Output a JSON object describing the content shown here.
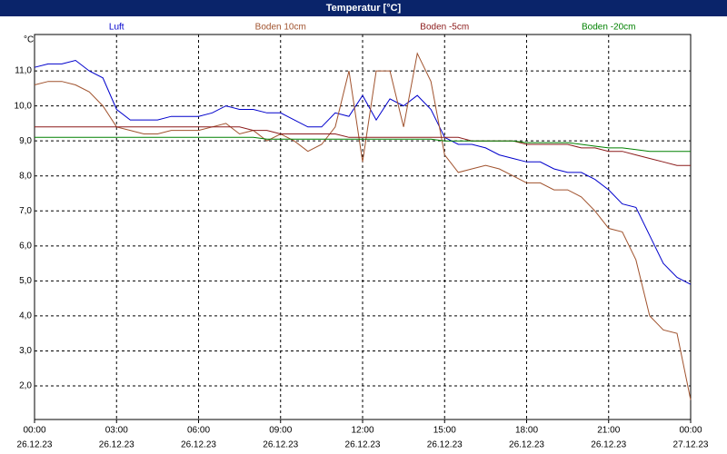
{
  "chart_data": {
    "type": "line",
    "title": "Temperatur [°C]",
    "y_unit_label": "°C",
    "x": [
      0,
      0.5,
      1,
      1.5,
      2,
      2.5,
      3,
      3.5,
      4,
      4.5,
      5,
      5.5,
      6,
      6.5,
      7,
      7.5,
      8,
      8.5,
      9,
      9.5,
      10,
      10.5,
      11,
      11.5,
      12,
      12.5,
      13,
      13.5,
      14,
      14.5,
      15,
      15.5,
      16,
      16.5,
      17,
      17.5,
      18,
      18.5,
      19,
      19.5,
      20,
      20.5,
      21,
      21.5,
      22,
      22.5,
      23,
      23.5,
      24
    ],
    "series": [
      {
        "name": "Luft",
        "color": "#0000cc",
        "values": [
          11.1,
          11.2,
          11.2,
          11.3,
          11.0,
          10.8,
          9.9,
          9.6,
          9.6,
          9.6,
          9.7,
          9.7,
          9.7,
          9.8,
          10.0,
          9.9,
          9.9,
          9.8,
          9.8,
          9.6,
          9.4,
          9.4,
          9.8,
          9.7,
          10.3,
          9.6,
          10.2,
          10.0,
          10.3,
          9.9,
          9.1,
          8.9,
          8.9,
          8.8,
          8.6,
          8.5,
          8.4,
          8.4,
          8.2,
          8.1,
          8.1,
          7.9,
          7.6,
          7.2,
          7.1,
          6.3,
          5.5,
          5.1,
          4.9
        ]
      },
      {
        "name": "Boden 10cm",
        "color": "#a0522d",
        "values": [
          10.6,
          10.7,
          10.7,
          10.6,
          10.4,
          10.0,
          9.4,
          9.3,
          9.2,
          9.2,
          9.3,
          9.3,
          9.3,
          9.4,
          9.5,
          9.2,
          9.3,
          9.0,
          9.2,
          9.0,
          8.7,
          8.9,
          9.4,
          11.0,
          8.4,
          11.0,
          11.0,
          9.4,
          11.5,
          10.7,
          8.6,
          8.1,
          8.2,
          8.3,
          8.2,
          8.0,
          7.8,
          7.8,
          7.6,
          7.6,
          7.4,
          7.0,
          6.5,
          6.4,
          5.6,
          4.0,
          3.6,
          3.5,
          1.6
        ]
      },
      {
        "name": "Boden -5cm",
        "color": "#8b1a1a",
        "values": [
          9.4,
          9.4,
          9.4,
          9.4,
          9.4,
          9.4,
          9.4,
          9.4,
          9.4,
          9.4,
          9.4,
          9.4,
          9.4,
          9.4,
          9.4,
          9.4,
          9.3,
          9.3,
          9.2,
          9.2,
          9.2,
          9.2,
          9.2,
          9.1,
          9.1,
          9.1,
          9.1,
          9.1,
          9.1,
          9.1,
          9.1,
          9.1,
          9.0,
          9.0,
          9.0,
          9.0,
          8.9,
          8.9,
          8.9,
          8.9,
          8.8,
          8.8,
          8.7,
          8.7,
          8.6,
          8.5,
          8.4,
          8.3,
          8.3
        ]
      },
      {
        "name": "Boden -20cm",
        "color": "#008000",
        "values": [
          9.1,
          9.1,
          9.1,
          9.1,
          9.1,
          9.1,
          9.1,
          9.1,
          9.1,
          9.1,
          9.1,
          9.1,
          9.1,
          9.1,
          9.1,
          9.1,
          9.1,
          9.05,
          9.05,
          9.05,
          9.05,
          9.05,
          9.05,
          9.05,
          9.05,
          9.05,
          9.05,
          9.05,
          9.05,
          9.05,
          9.0,
          9.0,
          9.0,
          9.0,
          9.0,
          9.0,
          8.95,
          8.95,
          8.95,
          8.95,
          8.9,
          8.85,
          8.8,
          8.8,
          8.75,
          8.7,
          8.7,
          8.7,
          8.7
        ]
      }
    ],
    "xlim": [
      0,
      24
    ],
    "xticks": [
      {
        "value": 0,
        "label": "00:00"
      },
      {
        "value": 3,
        "label": "03:00"
      },
      {
        "value": 6,
        "label": "06:00"
      },
      {
        "value": 9,
        "label": "09:00"
      },
      {
        "value": 12,
        "label": "12:00"
      },
      {
        "value": 15,
        "label": "15:00"
      },
      {
        "value": 18,
        "label": "18:00"
      },
      {
        "value": 21,
        "label": "21:00"
      },
      {
        "value": 24,
        "label": "00:00"
      }
    ],
    "xtick_dates": [
      "26.12.23",
      "26.12.23",
      "26.12.23",
      "26.12.23",
      "26.12.23",
      "26.12.23",
      "26.12.23",
      "26.12.23",
      "27.12.23"
    ],
    "ylim": [
      1.04,
      12.04
    ],
    "yticks": [
      {
        "value": 2,
        "label": "2,0"
      },
      {
        "value": 3,
        "label": "3,0"
      },
      {
        "value": 4,
        "label": "4,0"
      },
      {
        "value": 5,
        "label": "5,0"
      },
      {
        "value": 6,
        "label": "6,0"
      },
      {
        "value": 7,
        "label": "7,0"
      },
      {
        "value": 8,
        "label": "8,0"
      },
      {
        "value": 9,
        "label": "9,0"
      },
      {
        "value": 10,
        "label": "10,0"
      },
      {
        "value": 11,
        "label": "11,0"
      }
    ],
    "grid": true
  }
}
